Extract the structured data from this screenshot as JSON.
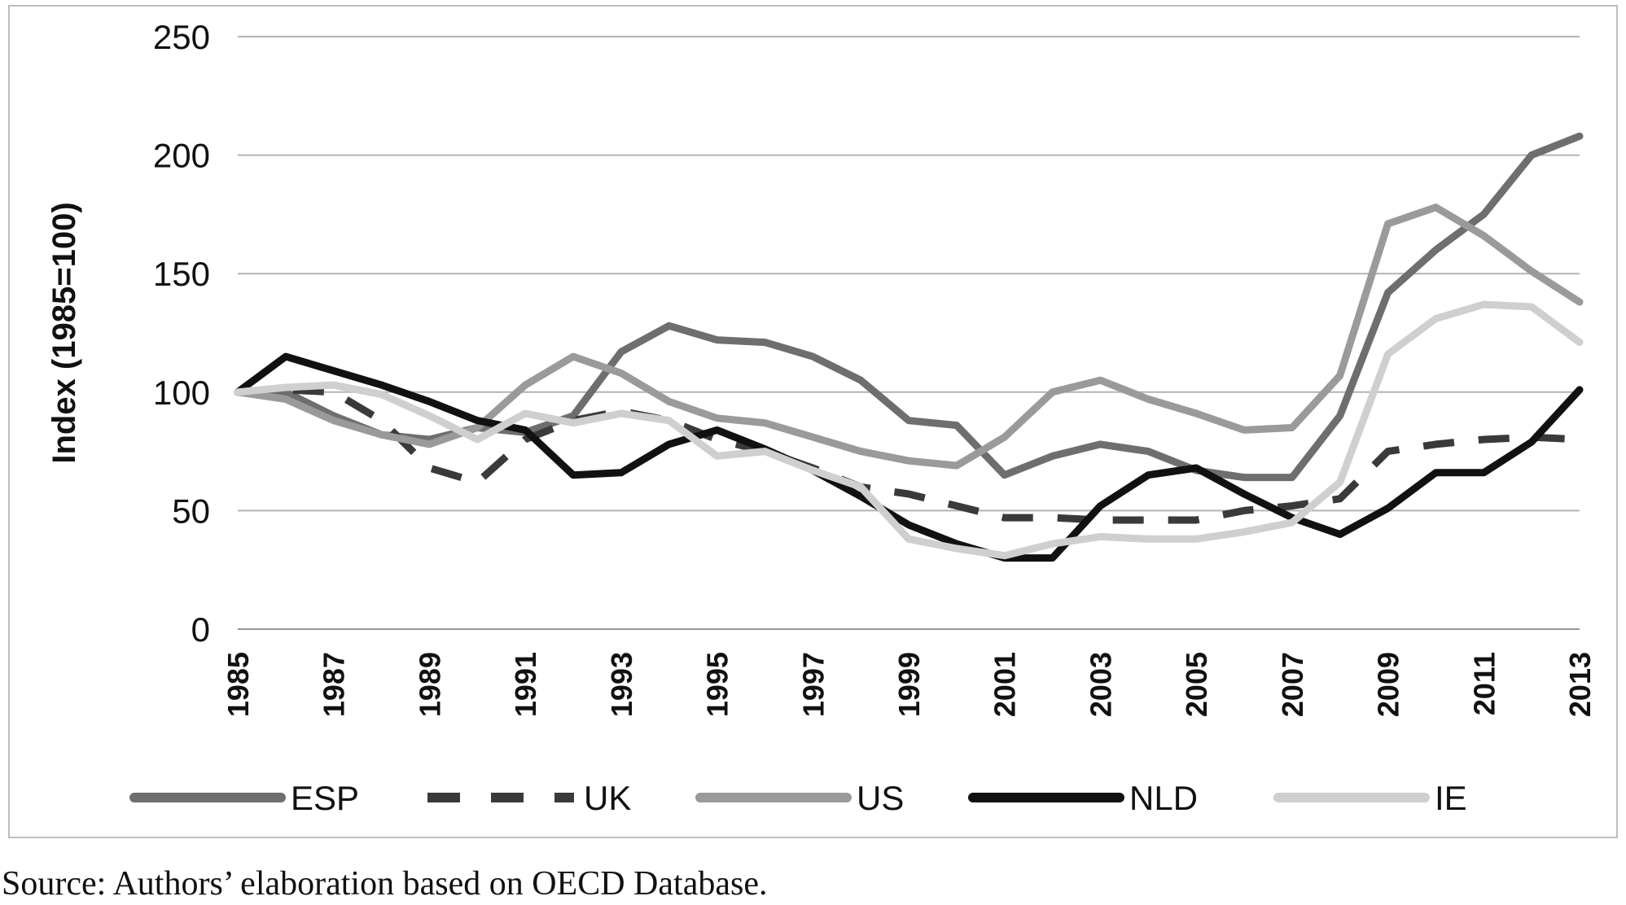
{
  "chart_data": {
    "type": "line",
    "title": "",
    "xlabel": "",
    "ylabel": "Index (1985=100)",
    "ylim": [
      0,
      250
    ],
    "yticks": [
      0,
      50,
      100,
      150,
      200,
      250
    ],
    "grid": "horizontal",
    "legend_position": "bottom",
    "x": [
      1985,
      1986,
      1987,
      1988,
      1989,
      1990,
      1991,
      1992,
      1993,
      1994,
      1995,
      1996,
      1997,
      1998,
      1999,
      2000,
      2001,
      2002,
      2003,
      2004,
      2005,
      2006,
      2007,
      2008,
      2009,
      2010,
      2011,
      2012,
      2013
    ],
    "xtick_labels": [
      "1985",
      "1987",
      "1989",
      "1991",
      "1993",
      "1995",
      "1997",
      "1999",
      "2001",
      "2003",
      "2005",
      "2007",
      "2009",
      "2011",
      "2013"
    ],
    "series": [
      {
        "name": "ESP",
        "color": "#6e6e6e",
        "dash": "solid",
        "values": [
          100,
          100,
          90,
          82,
          80,
          85,
          83,
          90,
          117,
          128,
          122,
          121,
          115,
          105,
          88,
          86,
          65,
          73,
          78,
          75,
          67,
          64,
          64,
          90,
          142,
          160,
          175,
          200,
          208
        ]
      },
      {
        "name": "UK",
        "color": "#3a3a3a",
        "dash": "dashed",
        "values": [
          100,
          101,
          100,
          88,
          68,
          62,
          80,
          88,
          92,
          88,
          80,
          75,
          68,
          60,
          57,
          52,
          47,
          47,
          46,
          46,
          46,
          50,
          52,
          55,
          75,
          78,
          80,
          81,
          80
        ]
      },
      {
        "name": "US",
        "color": "#9a9a9a",
        "dash": "solid",
        "values": [
          100,
          97,
          88,
          82,
          78,
          85,
          103,
          115,
          108,
          96,
          89,
          87,
          81,
          75,
          71,
          69,
          81,
          100,
          105,
          97,
          91,
          84,
          85,
          107,
          171,
          178,
          166,
          151,
          138
        ]
      },
      {
        "name": "NLD",
        "color": "#111111",
        "dash": "solid",
        "values": [
          100,
          115,
          109,
          103,
          96,
          88,
          84,
          65,
          66,
          78,
          84,
          76,
          67,
          56,
          44,
          36,
          30,
          30,
          52,
          65,
          68,
          57,
          47,
          40,
          51,
          66,
          66,
          79,
          101
        ]
      },
      {
        "name": "IE",
        "color": "#cfcfcf",
        "dash": "solid",
        "values": [
          100,
          102,
          103,
          99,
          90,
          80,
          91,
          87,
          91,
          88,
          73,
          75,
          67,
          60,
          38,
          34,
          31,
          36,
          39,
          38,
          38,
          41,
          45,
          62,
          116,
          131,
          137,
          136,
          121
        ]
      }
    ]
  },
  "source_note": "Source: Authors’ elaboration based on OECD Database."
}
